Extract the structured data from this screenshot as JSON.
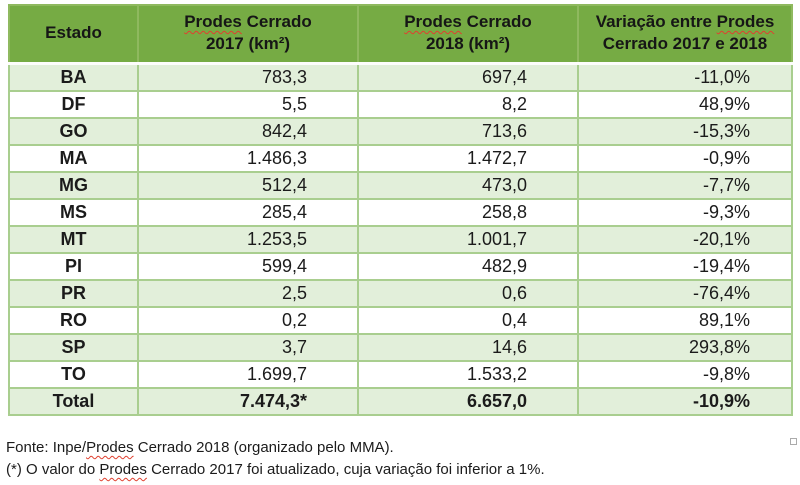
{
  "spellcheck": {
    "word": "Prodes",
    "squiggle_color": "#E0402F"
  },
  "table": {
    "header": [
      {
        "line1": "Estado",
        "line2": ""
      },
      {
        "line1": "Prodes Cerrado",
        "line2": "2017 (km²)"
      },
      {
        "line1": "Prodes Cerrado",
        "line2": "2018 (km²)"
      },
      {
        "line1": "Variação entre Prodes",
        "line2": "Cerrado 2017 e 2018"
      }
    ],
    "rows": [
      [
        "BA",
        "783,3",
        "697,4",
        "-11,0%"
      ],
      [
        "DF",
        "5,5",
        "8,2",
        "48,9%"
      ],
      [
        "GO",
        "842,4",
        "713,6",
        "-15,3%"
      ],
      [
        "MA",
        "1.486,3",
        "1.472,7",
        "-0,9%"
      ],
      [
        "MG",
        "512,4",
        "473,0",
        "-7,7%"
      ],
      [
        "MS",
        "285,4",
        "258,8",
        "-9,3%"
      ],
      [
        "MT",
        "1.253,5",
        "1.001,7",
        "-20,1%"
      ],
      [
        "PI",
        "599,4",
        "482,9",
        "-19,4%"
      ],
      [
        "PR",
        "2,5",
        "0,6",
        "-76,4%"
      ],
      [
        "RO",
        "0,2",
        "0,4",
        "89,1%"
      ],
      [
        "SP",
        "3,7",
        "14,6",
        "293,8%"
      ],
      [
        "TO",
        "1.699,7",
        "1.533,2",
        "-9,8%"
      ]
    ],
    "total_row": [
      "Total",
      "7.474,3*",
      "6.657,0",
      "-10,9%"
    ]
  },
  "notes": {
    "source": "Fonte: Inpe/Prodes Cerrado 2018 (organizado pelo MMA).",
    "asterisk": "(*) O valor do Prodes Cerrado 2017 foi atualizado, cuja variação foi inferior a 1%."
  },
  "colors": {
    "header_bg": "#76AB44",
    "band_bg": "#E2EFDA",
    "border": "#A9CE8F",
    "text": "#1B1B1B"
  }
}
